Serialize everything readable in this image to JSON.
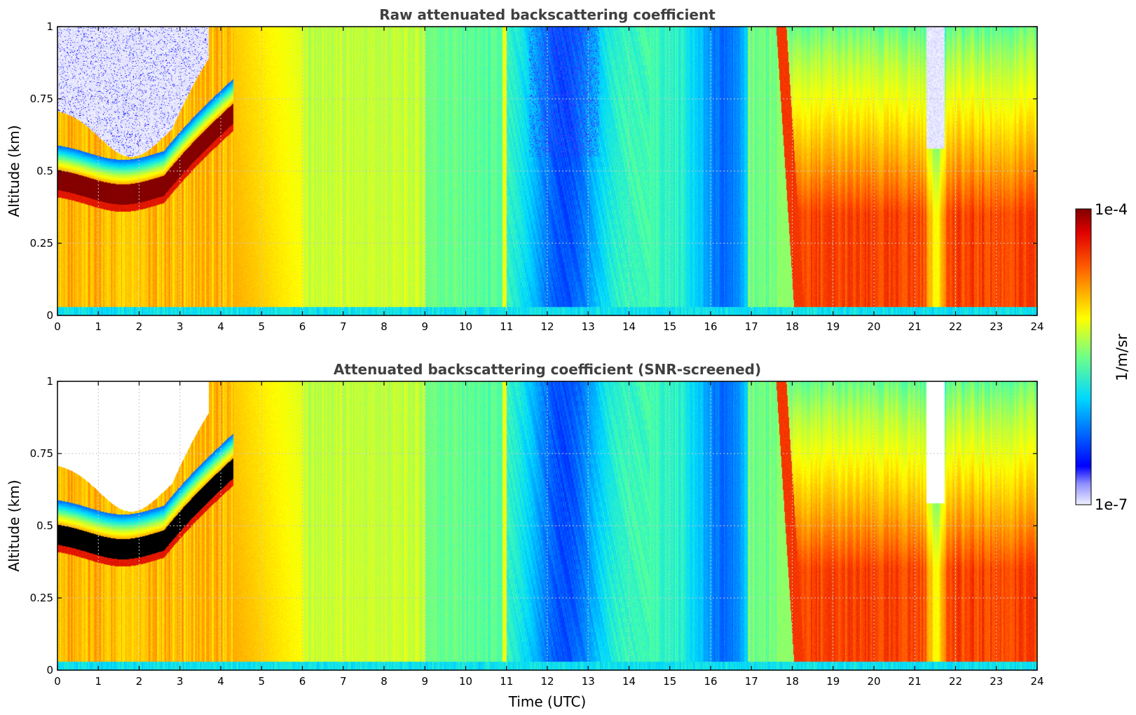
{
  "chart_data": [
    {
      "type": "heatmap",
      "title": "Raw attenuated backscattering coefficient",
      "xlabel": "",
      "ylabel": "Altitude (km)",
      "xlim": [
        0,
        24
      ],
      "ylim": [
        0,
        1
      ],
      "x_ticks": [
        "0",
        "1",
        "2",
        "3",
        "4",
        "5",
        "6",
        "7",
        "8",
        "9",
        "10",
        "11",
        "12",
        "13",
        "14",
        "15",
        "16",
        "17",
        "18",
        "19",
        "20",
        "21",
        "22",
        "23",
        "24"
      ],
      "y_ticks": [
        "0",
        "0.25",
        "0.5",
        "0.75",
        "1"
      ],
      "grid": true,
      "layer_variant": "raw"
    },
    {
      "type": "heatmap",
      "title": "Attenuated backscattering coefficient (SNR-screened)",
      "xlabel": "Time (UTC)",
      "ylabel": "Altitude (km)",
      "xlim": [
        0,
        24
      ],
      "ylim": [
        0,
        1
      ],
      "x_ticks": [
        "0",
        "1",
        "2",
        "3",
        "4",
        "5",
        "6",
        "7",
        "8",
        "9",
        "10",
        "11",
        "12",
        "13",
        "14",
        "15",
        "16",
        "17",
        "18",
        "19",
        "20",
        "21",
        "22",
        "23",
        "24"
      ],
      "y_ticks": [
        "0",
        "0.25",
        "0.5",
        "0.75",
        "1"
      ],
      "grid": true,
      "layer_variant": "screened"
    }
  ],
  "colorbar": {
    "label": "1/m/sr",
    "max_label": "1e-4",
    "min_label": "1e-7",
    "colormap": "jet",
    "range": [
      1e-07,
      0.0001
    ]
  },
  "colors": {
    "text": "#000000",
    "title": "#404040",
    "grid": "#c8c8c8"
  }
}
